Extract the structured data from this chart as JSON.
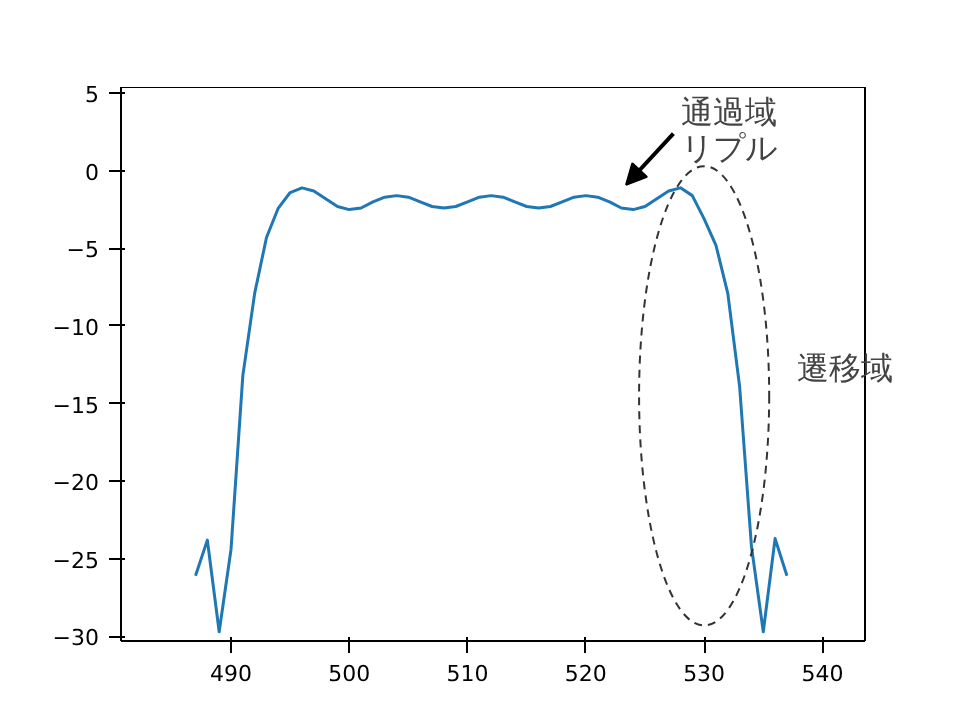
{
  "chart_data": {
    "type": "line",
    "x": [
      487,
      488,
      489,
      490,
      491,
      492,
      493,
      494,
      495,
      496,
      497,
      498,
      499,
      500,
      501,
      502,
      503,
      504,
      505,
      506,
      507,
      508,
      509,
      510,
      511,
      512,
      513,
      514,
      515,
      516,
      517,
      518,
      519,
      520,
      521,
      522,
      523,
      524,
      525,
      526,
      527,
      528,
      529,
      530,
      531,
      532,
      533,
      534,
      535,
      536,
      537
    ],
    "series": [
      {
        "color": "#1f77b4",
        "values": [
          -26.1,
          -23.8,
          -29.7,
          -24.4,
          -13.2,
          -7.9,
          -4.3,
          -2.4,
          -1.4,
          -1.1,
          -1.3,
          -1.8,
          -2.3,
          -2.5,
          -2.4,
          -2.0,
          -1.7,
          -1.6,
          -1.7,
          -2.0,
          -2.3,
          -2.4,
          -2.3,
          -2.0,
          -1.7,
          -1.6,
          -1.7,
          -2.0,
          -2.3,
          -2.4,
          -2.3,
          -2.0,
          -1.7,
          -1.6,
          -1.7,
          -2.0,
          -2.4,
          -2.5,
          -2.3,
          -1.8,
          -1.3,
          -1.1,
          -1.6,
          -3.1,
          -4.8,
          -7.9,
          -13.9,
          -24.2,
          -29.7,
          -23.7,
          -26.1
        ]
      }
    ],
    "xlim": [
      480.7,
      543.6
    ],
    "ylim": [
      -30.3,
      5.4
    ],
    "xticks": [
      490,
      500,
      510,
      520,
      530,
      540
    ],
    "yticks": [
      -30,
      -25,
      -20,
      -15,
      -10,
      -5,
      0,
      5
    ],
    "annotations": [
      "通過域リプル",
      "遷移域"
    ],
    "grid": false,
    "marker": "none",
    "line_style": "solid"
  }
}
